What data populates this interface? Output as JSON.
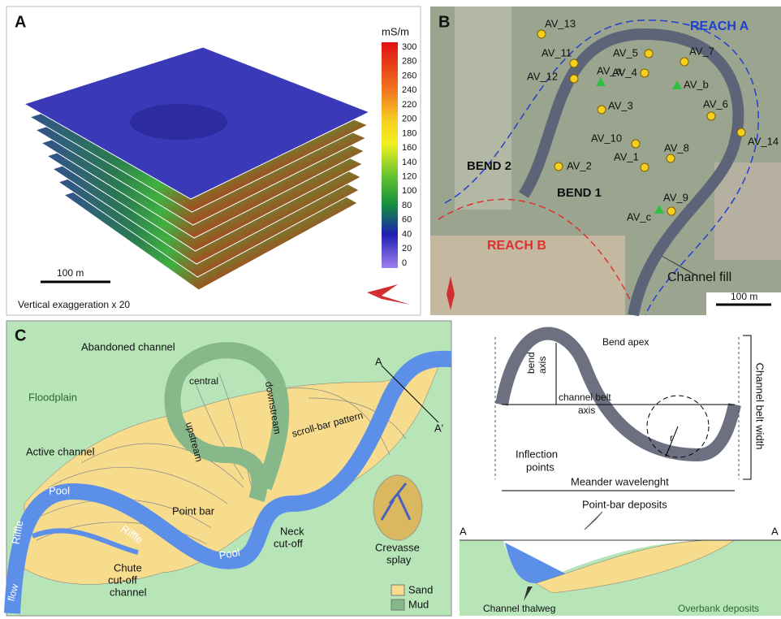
{
  "panel_a": {
    "label": "A",
    "unit": "mS/m",
    "colorbar_ticks": [
      300,
      280,
      260,
      240,
      220,
      200,
      180,
      160,
      140,
      120,
      100,
      80,
      60,
      40,
      20,
      0
    ],
    "scale_bar": "100 m",
    "note": "Vertical exaggeration x 20"
  },
  "panel_b": {
    "label": "B",
    "reach_a": "REACH A",
    "reach_b": "REACH B",
    "bend_1": "BEND 1",
    "bend_2": "BEND 2",
    "channel_fill": "Channel fill",
    "scale_bar": "100 m",
    "samples": [
      "AV_13",
      "AV_11",
      "AV_12",
      "AV_5",
      "AV_7",
      "AV_4",
      "AV_3",
      "AV_6",
      "AV_10",
      "AV_14",
      "AV_1",
      "AV_8",
      "AV_2",
      "AV_9"
    ],
    "boreholes": [
      "AV_a",
      "AV_b",
      "AV_c"
    ]
  },
  "panel_c": {
    "label": "C",
    "abandoned_channel": "Abandoned channel",
    "floodplain": "Floodplain",
    "central": "central",
    "downstream": "downstream",
    "upstream": "upstream",
    "scroll_bar": "scroll-bar pattern",
    "section_a": "A",
    "section_a_prime": "A'",
    "active_channel": "Active channel",
    "pool_1": "Pool",
    "riffle_1": "Riffle",
    "riffle_2": "Riffle",
    "point_bar": "Point bar",
    "neck_cutoff": [
      "Neck",
      "cut-off"
    ],
    "crevasse_splay": [
      "Crevasse",
      "splay"
    ],
    "flow": "flow",
    "chute": [
      "Chute",
      "cut-off",
      "channel"
    ],
    "pool_2": "Pool",
    "legend": [
      "Sand",
      "Mud"
    ]
  },
  "meander": {
    "bend_apex": "Bend apex",
    "bend_axis": [
      "bend",
      "axis"
    ],
    "channel_belt_axis": [
      "channel belt",
      "axis"
    ],
    "inflection_points": [
      "Inflection",
      "points"
    ],
    "radius": "r",
    "wavelength": "Meander wavelenght",
    "belt_width": "Channel belt width"
  },
  "section": {
    "left_end": "A",
    "right_end": "A",
    "point_bar_deposits": "Point-bar deposits",
    "thalweg": "Channel thalweg",
    "overbank": "Overbank deposits"
  }
}
